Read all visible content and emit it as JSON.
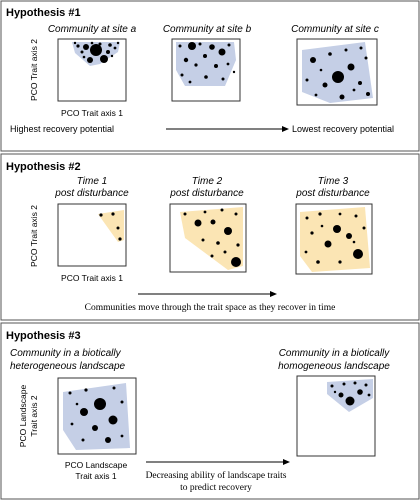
{
  "panels": [
    {
      "title": "Hypothesis #1",
      "plot_captions": [
        [
          "Community at site a"
        ],
        [
          "Community at site b"
        ],
        [
          "Community at site c"
        ]
      ],
      "y_axis_label": "PCO Trait  axis 2",
      "x_axis_label": "PCO Trait axis 1",
      "arrow_left_label": "Highest recovery potential",
      "arrow_right_label": "Lowest recovery potential"
    },
    {
      "title": "Hypothesis #2",
      "plot_captions": [
        [
          "Time 1",
          "post disturbance"
        ],
        [
          "Time 2",
          "post disturbance"
        ],
        [
          "Time 3",
          "post disturbance"
        ]
      ],
      "y_axis_label": "PCO Trait  axis 2",
      "x_axis_label": "PCO Trait axis 1",
      "arrow_label": "Communities move through the trait space as they recover in time"
    },
    {
      "title": "Hypothesis #3",
      "plot_captions": [
        [
          "Community in a biotically",
          "heterogeneous landscape"
        ],
        [
          "Community in a biotically",
          "homogeneous landscape"
        ]
      ],
      "y_axis_label_lines": [
        "PCO Landscape",
        "Trait  axis 2"
      ],
      "x_axis_label_lines": [
        "PCO Landscape",
        "Trait axis 1"
      ],
      "arrow_label_lines": [
        "Decreasing ability of landscape traits",
        "to predict recovery"
      ]
    }
  ],
  "colors": {
    "hull_blue": "#c5cfe6",
    "hull_yellow": "#fbe5b4",
    "border": "#555555",
    "dot": "#000000"
  }
}
